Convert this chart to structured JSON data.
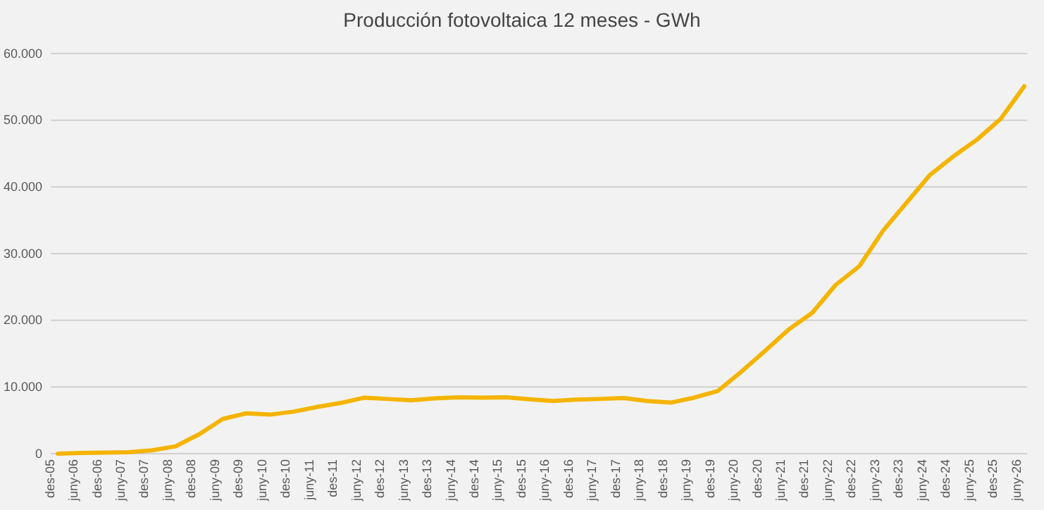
{
  "chart_data": {
    "type": "line",
    "title": "Producción fotovoltaica 12 meses - GWh",
    "categories": [
      "des-05",
      "juny-06",
      "des-06",
      "juny-07",
      "des-07",
      "juny-08",
      "des-08",
      "juny-09",
      "des-09",
      "juny-10",
      "des-10",
      "juny-11",
      "des-11",
      "juny-12",
      "des-12",
      "juny-13",
      "des-13",
      "juny-14",
      "des-14",
      "juny-15",
      "des-15",
      "juny-16",
      "des-16",
      "juny-17",
      "des-17",
      "juny-18",
      "des-18",
      "juny-19",
      "des-19",
      "juny-20",
      "des-20",
      "juny-21",
      "des-21",
      "juny-22",
      "des-22",
      "juny-23",
      "des-23",
      "juny-24",
      "des-24",
      "juny-25",
      "des-25",
      "juny-26"
    ],
    "series": [
      {
        "color": "#f5b400",
        "values": [
          0,
          100,
          150,
          200,
          500,
          1100,
          2900,
          5200,
          6050,
          5850,
          6300,
          7000,
          7600,
          8400,
          8200,
          8000,
          8300,
          8450,
          8400,
          8450,
          8150,
          7900,
          8100,
          8200,
          8350,
          7900,
          7650,
          8400,
          9400,
          12300,
          15400,
          18600,
          21100,
          25300,
          28100,
          33400,
          37600,
          41800,
          44600,
          47100,
          50200,
          55100
        ]
      }
    ],
    "ylim": [
      0,
      60000
    ],
    "yticks": [
      {
        "value": 0,
        "label": "0"
      },
      {
        "value": 10000,
        "label": "10.000"
      },
      {
        "value": 20000,
        "label": "20.000"
      },
      {
        "value": 30000,
        "label": "30.000"
      },
      {
        "value": 40000,
        "label": "40.000"
      },
      {
        "value": 50000,
        "label": "50.000"
      },
      {
        "value": 60000,
        "label": "60.000"
      }
    ],
    "grid": "y",
    "line_style": "solid"
  }
}
